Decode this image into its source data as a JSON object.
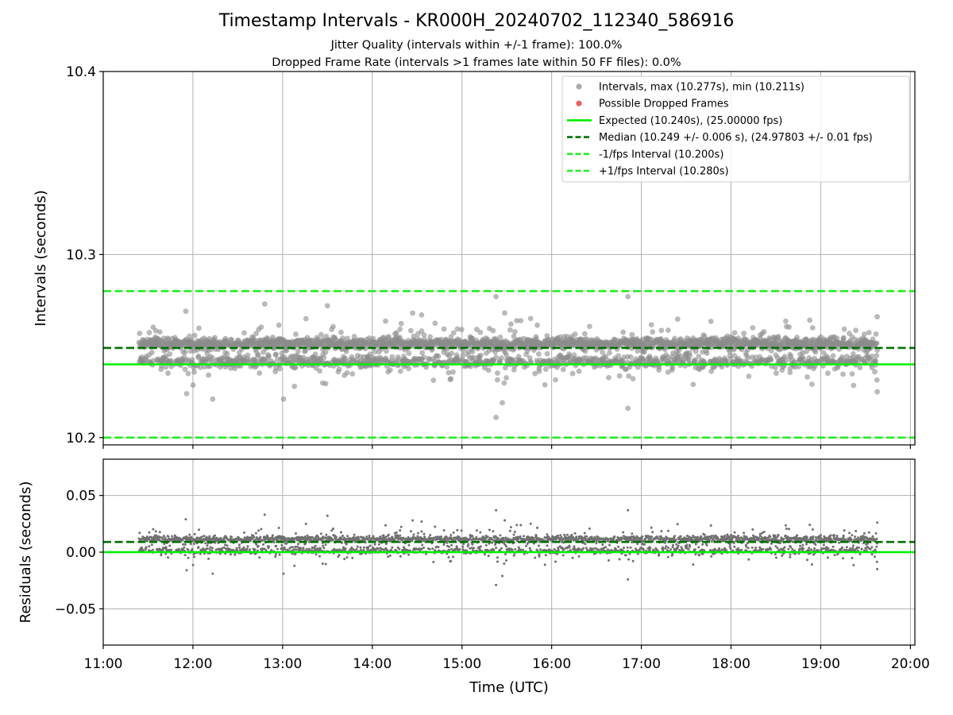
{
  "chart_data": [
    {
      "type": "scatter",
      "title": "Timestamp Intervals - KR000H_20240702_112340_586916",
      "subtitle_1": "Jitter Quality (intervals within +/-1 frame): 100.0%",
      "subtitle_2": "Dropped Frame Rate (intervals >1 frames late within 50 FF files): 0.0%",
      "ylabel": "Intervals (seconds)",
      "ylim": [
        10.196,
        10.4
      ],
      "yticks": [
        10.2,
        10.3,
        10.4
      ],
      "ytick_labels": [
        "10.2",
        "10.3",
        "10.4"
      ],
      "xlim": [
        11.0,
        20.05
      ],
      "grid": true,
      "legend_placement": "upper-right",
      "colors": {
        "intervals": "#8c8c8c",
        "dropped": "#f06060",
        "expected": "#00ee00",
        "median": "#007000",
        "bounds": "#22ee22"
      },
      "series": [
        {
          "name": "Intervals, max (10.277s), min (10.211s)",
          "marker": "scatter",
          "max": 10.277,
          "min": 10.211,
          "median": 10.249,
          "x_range": [
            11.4,
            19.63
          ],
          "count": 2950,
          "spread": 0.006,
          "notable_points": [
            [
              11.92,
              10.269
            ],
            [
              11.93,
              10.224
            ],
            [
              12.22,
              10.221
            ],
            [
              12.8,
              10.273
            ],
            [
              13.01,
              10.221
            ],
            [
              13.5,
              10.272
            ],
            [
              14.45,
              10.268
            ],
            [
              14.55,
              10.267
            ],
            [
              15.38,
              10.277
            ],
            [
              15.38,
              10.211
            ],
            [
              15.45,
              10.219
            ],
            [
              16.85,
              10.277
            ],
            [
              16.85,
              10.216
            ],
            [
              19.63,
              10.266
            ],
            [
              19.63,
              10.225
            ]
          ]
        },
        {
          "name": "Possible Dropped Frames",
          "marker": "scatter",
          "points": []
        },
        {
          "name": "Expected (10.240s), (25.00000 fps)",
          "marker": "hline",
          "y": 10.24,
          "style": "solid"
        },
        {
          "name": "Median (10.249 +/- 0.006 s), (24.97803 +/- 0.01 fps)",
          "marker": "hline",
          "y": 10.249,
          "style": "dashed"
        },
        {
          "name": "-1/fps Interval (10.200s)",
          "marker": "hline",
          "y": 10.2,
          "style": "dashed"
        },
        {
          "name": "+1/fps Interval (10.280s)",
          "marker": "hline",
          "y": 10.28,
          "style": "dashed"
        }
      ]
    },
    {
      "type": "scatter",
      "xlabel": "Time (UTC)",
      "ylabel": "Residuals (seconds)",
      "ylim": [
        -0.082,
        0.082
      ],
      "yticks": [
        -0.05,
        0.0,
        0.05
      ],
      "ytick_labels": [
        "−0.05",
        "0.00",
        "0.05"
      ],
      "xlim": [
        11.0,
        20.05
      ],
      "xticks": [
        11,
        12,
        13,
        14,
        15,
        16,
        17,
        18,
        19,
        20
      ],
      "xtick_labels": [
        "11:00",
        "12:00",
        "13:00",
        "14:00",
        "15:00",
        "16:00",
        "17:00",
        "18:00",
        "19:00",
        "20:00"
      ],
      "grid": true,
      "series": [
        {
          "marker": "scatter",
          "x_range": [
            11.4,
            19.63
          ],
          "count": 2950,
          "center": 0.009,
          "max": 0.037,
          "min": -0.029
        },
        {
          "marker": "hline",
          "y": 0.0,
          "style": "solid"
        },
        {
          "marker": "hline",
          "y": 0.009,
          "style": "dashed"
        }
      ]
    }
  ]
}
